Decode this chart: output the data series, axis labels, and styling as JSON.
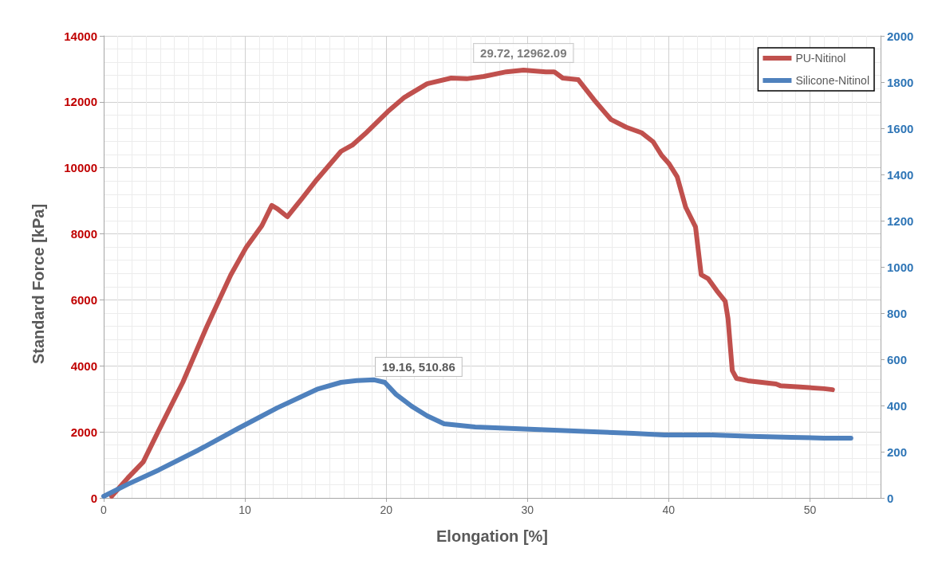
{
  "chart_data": {
    "type": "line",
    "xlabel": "Elongation [%]",
    "ylabel": "Standard Force [kPa]",
    "xlim": [
      0,
      55
    ],
    "xticks": [
      0,
      10,
      20,
      30,
      40,
      50
    ],
    "ylim": [
      0,
      14000
    ],
    "yticks": [
      0,
      2000,
      4000,
      6000,
      8000,
      10000,
      12000,
      14000
    ],
    "y2lim": [
      0,
      2000
    ],
    "y2ticks": [
      0,
      200,
      400,
      600,
      800,
      1000,
      1200,
      1400,
      1600,
      1800,
      2000
    ],
    "grid": true,
    "legend": "top right",
    "marker": "none",
    "line_style": "solid",
    "annotations": [
      {
        "text": "29.72, 12962.09",
        "x": 29.72,
        "y": 12962.09
      },
      "19.16, 510.86"
    ],
    "series": [
      {
        "name": "PU-Nitinol",
        "color": "#c0504d",
        "x": [
          0.56,
          1.7,
          2.8,
          3.9,
          5.6,
          7.3,
          9.0,
          10.1,
          11.2,
          11.9,
          12.3,
          13.0,
          14.0,
          15.1,
          16.8,
          17.6,
          18.5,
          20.1,
          21.3,
          22.9,
          24.6,
          25.7,
          26.9,
          28.5,
          29.72,
          31.3,
          31.9,
          32.5,
          33.6,
          34.7,
          35.9,
          37.0,
          38.1,
          38.9,
          39.5,
          40.0,
          40.6,
          41.2,
          41.9,
          42.3,
          42.8,
          43.4,
          44.0,
          44.2,
          44.5,
          44.8,
          45.6,
          47.6,
          47.9,
          49.3,
          51.0,
          51.6
        ],
        "values": [
          50,
          600,
          1090,
          2050,
          3500,
          5190,
          6760,
          7600,
          8250,
          8860,
          8760,
          8520,
          9050,
          9650,
          10500,
          10690,
          11030,
          11700,
          12140,
          12550,
          12720,
          12700,
          12770,
          12910,
          12962.09,
          12910,
          12910,
          12720,
          12670,
          12070,
          11470,
          11230,
          11060,
          10790,
          10380,
          10140,
          9730,
          8810,
          8210,
          6760,
          6640,
          6280,
          5960,
          5430,
          3860,
          3620,
          3550,
          3450,
          3400,
          3360,
          3310,
          3280
        ]
      },
      {
        "name": "Silicone-Nitinol",
        "color": "#4f81bd",
        "axis": "y2",
        "x": [
          0,
          1.7,
          3.9,
          6.7,
          9.5,
          12.3,
          15.1,
          16.8,
          17.9,
          19.16,
          19.9,
          20.7,
          21.8,
          22.9,
          24.1,
          26.3,
          29.1,
          31.9,
          34.7,
          37.5,
          39.7,
          43.1,
          45.9,
          48.7,
          51.0,
          52.9
        ],
        "values": [
          7,
          59,
          121,
          207,
          300,
          390,
          470,
          500,
          508,
          510.86,
          500,
          448,
          397,
          355,
          321,
          307,
          300,
          293,
          286,
          279,
          272,
          272,
          266,
          262,
          259,
          259
        ]
      }
    ]
  }
}
